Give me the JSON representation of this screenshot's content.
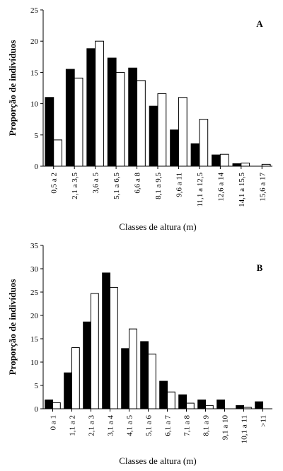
{
  "chart_data": [
    {
      "type": "bar",
      "panel_label": "A",
      "ylabel": "Proporção de indivíduos",
      "xlabel": "Classes de altura (m)",
      "ylim": [
        0,
        25
      ],
      "yticks": [
        "0",
        "5",
        "10",
        "15",
        "20",
        "25"
      ],
      "categories": [
        "0,5 a 2",
        "2,1 a 3,5",
        "3,6 a 5",
        "5,1 a 6,5",
        "6,6 a 8",
        "8,1 a 9,5",
        "9,6 a 11",
        "11,1 a 12,5",
        "12,6 a 14",
        "14,1 a 15,5",
        "15,6 a 17"
      ],
      "series": [
        {
          "fill": "#000000",
          "values": [
            11,
            15.5,
            18.8,
            17.3,
            15.7,
            9.6,
            5.8,
            3.6,
            1.8,
            0.4,
            0
          ]
        },
        {
          "fill": "#ffffff",
          "values": [
            4.2,
            14.1,
            20,
            15,
            13.7,
            11.6,
            11,
            7.5,
            1.9,
            0.5,
            0.3
          ]
        }
      ],
      "grid": false,
      "legend": "none"
    },
    {
      "type": "bar",
      "panel_label": "B",
      "ylabel": "Proporção de indivíduos",
      "xlabel": "Classes de altura (m)",
      "ylim": [
        0,
        35
      ],
      "yticks": [
        "0",
        "5",
        "10",
        "15",
        "20",
        "25",
        "30",
        "35"
      ],
      "categories": [
        "0 a 1",
        "1,1 a 2",
        "2,1 a 3",
        "3,1 a 4",
        "4,1 a 5",
        "5,1 a 6",
        "6,1 a 7",
        "7,1 a 8",
        "8,1 a 9",
        "9,1 a 10",
        "10,1 a 11",
        ">11"
      ],
      "series": [
        {
          "fill": "#000000",
          "values": [
            1.9,
            7.7,
            18.6,
            29.1,
            12.9,
            14.4,
            5.9,
            3,
            1.9,
            1.9,
            0.7,
            1.5
          ]
        },
        {
          "fill": "#ffffff",
          "values": [
            1.3,
            13.1,
            24.7,
            26,
            17.1,
            11.7,
            3.6,
            1.2,
            0.7,
            0,
            0.3,
            0
          ]
        }
      ],
      "grid": false,
      "legend": "none"
    }
  ]
}
